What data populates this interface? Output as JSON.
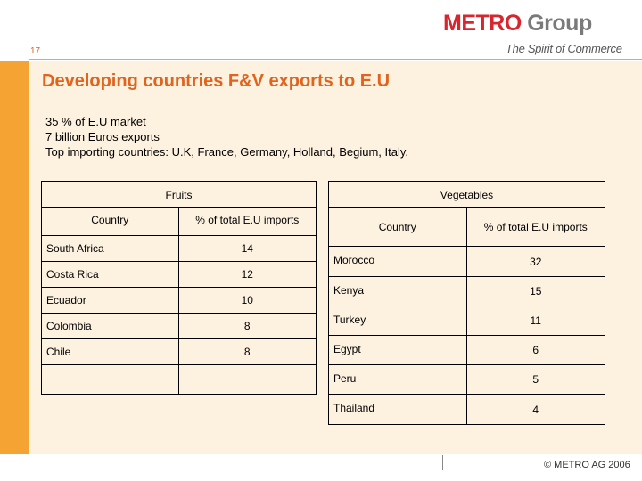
{
  "header": {
    "page_number": "17",
    "logo_metro": "METRO",
    "logo_group": "Group",
    "tagline": "The Spirit of Commerce"
  },
  "title": "Developing countries F&V exports to E.U",
  "intro": [
    " 35 % of E.U market",
    "7 billion Euros exports",
    "Top importing countries: U.K, France, Germany, Holland, Begium, Italy."
  ],
  "fruits": {
    "title": "Fruits",
    "col_country": "Country",
    "col_pct": "% of total E.U imports",
    "rows": [
      {
        "country": "South Africa",
        "pct": "14"
      },
      {
        "country": "Costa Rica",
        "pct": "12"
      },
      {
        "country": "Ecuador",
        "pct": "10"
      },
      {
        "country": "Colombia",
        "pct": "8"
      },
      {
        "country": "Chile",
        "pct": "8"
      }
    ]
  },
  "vegetables": {
    "title": "Vegetables",
    "col_country": "Country",
    "col_pct": "% of total E.U imports",
    "rows": [
      {
        "country": "Morocco",
        "pct": "32"
      },
      {
        "country": "Kenya",
        "pct": "15"
      },
      {
        "country": "Turkey",
        "pct": "11"
      },
      {
        "country": "Egypt",
        "pct": "6"
      },
      {
        "country": "Peru",
        "pct": "5"
      },
      {
        "country": "Thailand",
        "pct": "4"
      }
    ]
  },
  "footer": {
    "copyright": "© METRO AG 2006"
  }
}
